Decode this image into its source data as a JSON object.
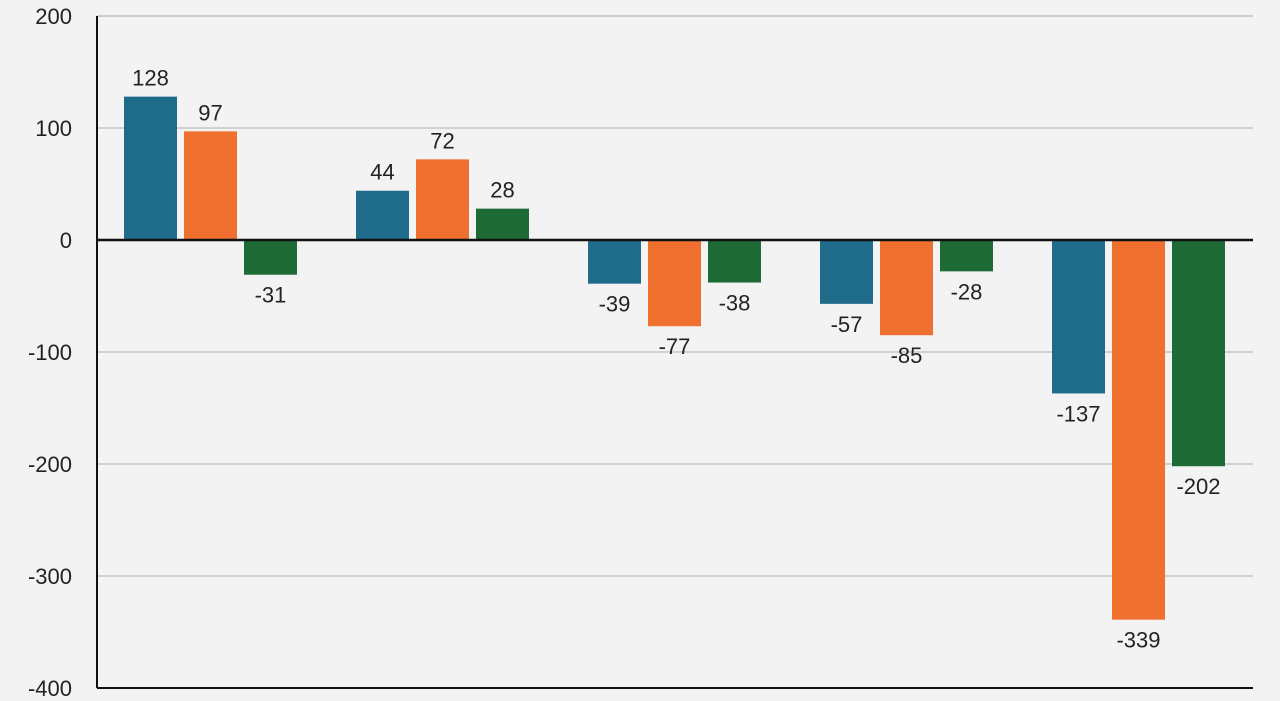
{
  "chart_data": {
    "type": "bar",
    "title": "",
    "xlabel": "",
    "ylabel": "",
    "ylim": [
      -400,
      200
    ],
    "yticks": [
      200,
      100,
      0,
      -100,
      -200,
      -300,
      -400
    ],
    "grid": true,
    "categories": [
      "",
      "",
      "",
      "",
      ""
    ],
    "series": [
      {
        "color": "#1f6b8a",
        "values": [
          128,
          44,
          -39,
          -57,
          -137
        ]
      },
      {
        "color": "#f07030",
        "values": [
          97,
          72,
          -77,
          -85,
          -339
        ]
      },
      {
        "color": "#1e6b35",
        "values": [
          -31,
          28,
          -38,
          -28,
          -202
        ]
      }
    ]
  },
  "colors": {
    "background": "#f3f3f3",
    "gridline": "#bdbdbd",
    "axis": "#111111"
  }
}
